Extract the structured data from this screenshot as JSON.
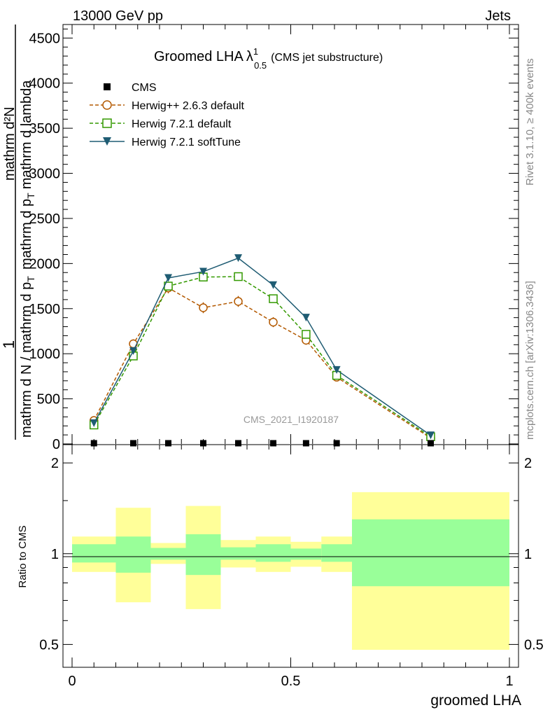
{
  "header": {
    "energy_label": "13000 GeV pp",
    "category_label": "Jets"
  },
  "side_text": {
    "rivet": "Rivet 3.1.10, ≥ 400k events",
    "mcplots": "mcplots.cern.ch [arXiv:1306.3436]"
  },
  "chart_data": {
    "type": "line",
    "title": "Groomed LHA",
    "title_symbol": "λ",
    "title_sup": "1",
    "title_sub": "0.5",
    "title_note": "(CMS jet substructure)",
    "analysis_label": "CMS_2021_I1920187",
    "xlabel": "groomed LHA",
    "ylabel_numer": "mathrm d²N",
    "ylabel_denom_a": "mathrm d p",
    "ylabel_denom_sub": "T",
    "ylabel_denom_b": "mathrm d lambda",
    "ylabel_one": "1",
    "ylabel_norm": "mathrm d N / mathrm d p",
    "ylabel_norm_sub": "T",
    "ylim": [
      0,
      4650
    ],
    "xlim": [
      0,
      1
    ],
    "y_ticks": [
      0,
      500,
      1000,
      1500,
      2000,
      2500,
      3000,
      3500,
      4000,
      4500
    ],
    "y_tick_labels": [
      "0",
      "500",
      "1000",
      "1500",
      "2000",
      "2500",
      "3000",
      "3500",
      "4000",
      "4500"
    ],
    "x_ticks": [
      0,
      0.5,
      1
    ],
    "x_tick_labels": [
      "0",
      "0.5",
      "1"
    ],
    "x": [
      0.05,
      0.14,
      0.22,
      0.3,
      0.38,
      0.46,
      0.535,
      0.605,
      0.82
    ],
    "series": [
      {
        "name": "CMS",
        "marker": "square-filled",
        "color": "#000000",
        "dash": false,
        "values": [
          5,
          5,
          5,
          5,
          5,
          5,
          5,
          5,
          5
        ]
      },
      {
        "name": "Herwig++ 2.6.3 default",
        "marker": "circle-open",
        "color": "#b35900",
        "dash": true,
        "values": [
          260,
          1110,
          1730,
          1510,
          1580,
          1350,
          1150,
          740,
          65
        ],
        "errors": [
          30,
          50,
          60,
          60,
          60,
          55,
          50,
          40,
          15
        ]
      },
      {
        "name": "Herwig 7.2.1 default",
        "marker": "square-open",
        "color": "#339900",
        "dash": true,
        "values": [
          210,
          975,
          1750,
          1850,
          1855,
          1610,
          1215,
          760,
          80
        ]
      },
      {
        "name": "Herwig 7.2.1 softTune",
        "marker": "triangle-down-filled",
        "color": "#1f5c73",
        "dash": false,
        "values": [
          230,
          1030,
          1840,
          1910,
          2060,
          1760,
          1400,
          820,
          95
        ]
      }
    ],
    "ratio": {
      "ylabel": "Ratio to CMS",
      "ylim": [
        0.42,
        2.3
      ],
      "log": true,
      "y_ticks": [
        0.5,
        1,
        2
      ],
      "y_tick_labels": [
        "0.5",
        "1",
        "2"
      ],
      "bins": [
        {
          "lo": 0.0,
          "hi": 0.1,
          "green": [
            0.935,
            1.075
          ],
          "yellow": [
            0.87,
            1.14
          ]
        },
        {
          "lo": 0.1,
          "hi": 0.18,
          "green": [
            0.865,
            1.14
          ],
          "yellow": [
            0.69,
            1.42
          ]
        },
        {
          "lo": 0.18,
          "hi": 0.26,
          "green": [
            0.955,
            1.045
          ],
          "yellow": [
            0.925,
            1.085
          ]
        },
        {
          "lo": 0.26,
          "hi": 0.34,
          "green": [
            0.85,
            1.16
          ],
          "yellow": [
            0.655,
            1.44
          ]
        },
        {
          "lo": 0.34,
          "hi": 0.42,
          "green": [
            0.955,
            1.05
          ],
          "yellow": [
            0.9,
            1.11
          ]
        },
        {
          "lo": 0.42,
          "hi": 0.5,
          "green": [
            0.94,
            1.075
          ],
          "yellow": [
            0.87,
            1.14
          ]
        },
        {
          "lo": 0.5,
          "hi": 0.57,
          "green": [
            0.955,
            1.04
          ],
          "yellow": [
            0.905,
            1.095
          ]
        },
        {
          "lo": 0.57,
          "hi": 0.64,
          "green": [
            0.94,
            1.075
          ],
          "yellow": [
            0.87,
            1.14
          ]
        },
        {
          "lo": 0.64,
          "hi": 1.0,
          "green": [
            0.78,
            1.3
          ],
          "yellow": [
            0.48,
            1.6
          ]
        }
      ]
    }
  }
}
